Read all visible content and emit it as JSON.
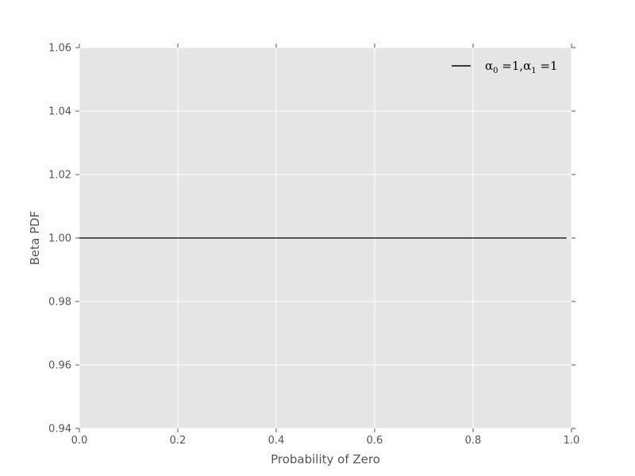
{
  "chart_data": {
    "type": "line",
    "xlabel": "Probability of Zero",
    "ylabel": "Beta PDF",
    "xlim": [
      0.0,
      1.0
    ],
    "ylim": [
      0.94,
      1.06
    ],
    "x_ticks": [
      "0.0",
      "0.2",
      "0.4",
      "0.6",
      "0.8",
      "1.0"
    ],
    "y_ticks": [
      "0.94",
      "0.96",
      "0.98",
      "1.00",
      "1.02",
      "1.04",
      "1.06"
    ],
    "grid": true,
    "legend_position": "top-right",
    "background_color": "#e5e5e5",
    "grid_color": "#ffffff",
    "series": [
      {
        "name": "α0 =1,α1 =1",
        "legend": {
          "a": "α",
          "sub0": "0",
          "mid": " =1,",
          "b": "α",
          "sub1": "1",
          "end": " =1"
        },
        "color": "#000000",
        "x": [
          0.0,
          0.99
        ],
        "y": [
          1.0,
          1.0
        ]
      }
    ]
  }
}
